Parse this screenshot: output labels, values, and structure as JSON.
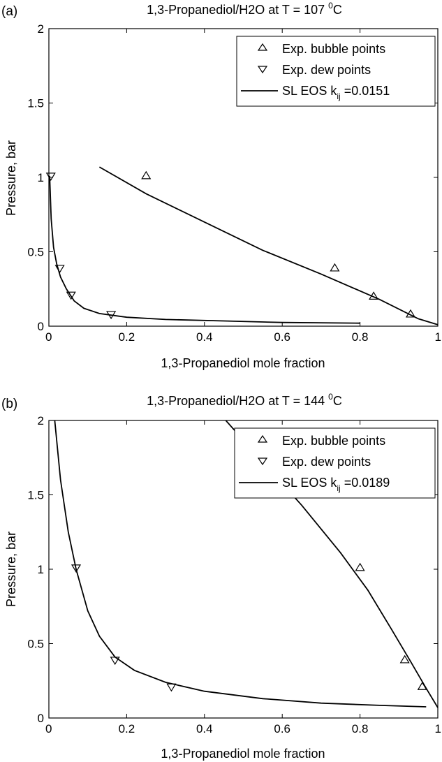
{
  "chart_data": [
    {
      "panel_label": "(a)",
      "type": "scatter",
      "title_main": "1,3-Propanediol/H2O at T = 107 ",
      "title_sup": "0",
      "title_unit": "C",
      "xlabel": "1,3-Propanediol mole fraction",
      "ylabel": "Pressure, bar",
      "xlim": [
        0,
        1
      ],
      "ylim": [
        0,
        2
      ],
      "xticks": [
        "0",
        "0.2",
        "0.4",
        "0.6",
        "0.8",
        "1"
      ],
      "yticks": [
        "0",
        "0.5",
        "1",
        "1.5",
        "2"
      ],
      "grid": false,
      "legend_position": "top-right",
      "legend": {
        "bubble": "Exp. bubble points",
        "dew": "Exp. dew points",
        "model_prefix": "SL EOS k",
        "model_sub": "ij",
        "model_suffix": " =0.0151"
      },
      "bubble_points": [
        {
          "x": 0.25,
          "y": 1.01
        },
        {
          "x": 0.735,
          "y": 0.39
        },
        {
          "x": 0.835,
          "y": 0.2
        },
        {
          "x": 0.93,
          "y": 0.08
        }
      ],
      "dew_points": [
        {
          "x": 0.005,
          "y": 1.01
        },
        {
          "x": 0.028,
          "y": 0.39
        },
        {
          "x": 0.057,
          "y": 0.21
        },
        {
          "x": 0.16,
          "y": 0.08
        }
      ],
      "bubble_curve": [
        {
          "x": 0.13,
          "y": 1.07
        },
        {
          "x": 0.25,
          "y": 0.89
        },
        {
          "x": 0.4,
          "y": 0.7
        },
        {
          "x": 0.55,
          "y": 0.51
        },
        {
          "x": 0.7,
          "y": 0.35
        },
        {
          "x": 0.85,
          "y": 0.18
        },
        {
          "x": 0.95,
          "y": 0.05
        },
        {
          "x": 1.0,
          "y": 0.01
        }
      ],
      "dew_curve": [
        {
          "x": 0.002,
          "y": 1.01
        },
        {
          "x": 0.006,
          "y": 0.72
        },
        {
          "x": 0.012,
          "y": 0.53
        },
        {
          "x": 0.02,
          "y": 0.42
        },
        {
          "x": 0.03,
          "y": 0.33
        },
        {
          "x": 0.045,
          "y": 0.25
        },
        {
          "x": 0.065,
          "y": 0.17
        },
        {
          "x": 0.09,
          "y": 0.12
        },
        {
          "x": 0.13,
          "y": 0.085
        },
        {
          "x": 0.2,
          "y": 0.06
        },
        {
          "x": 0.3,
          "y": 0.045
        },
        {
          "x": 0.45,
          "y": 0.035
        },
        {
          "x": 0.6,
          "y": 0.025
        },
        {
          "x": 0.8,
          "y": 0.02
        }
      ]
    },
    {
      "panel_label": "(b)",
      "type": "scatter",
      "title_main": "1,3-Propanediol/H2O at T = 144 ",
      "title_sup": "0",
      "title_unit": "C",
      "xlabel": "1,3-Propanediol mole fraction",
      "ylabel": "Pressure, bar",
      "xlim": [
        0,
        1
      ],
      "ylim": [
        0,
        2
      ],
      "xticks": [
        "0",
        "0.2",
        "0.4",
        "0.6",
        "0.8",
        "1"
      ],
      "yticks": [
        "0",
        "0.5",
        "1",
        "1.5",
        "2"
      ],
      "grid": false,
      "legend_position": "top-right",
      "legend": {
        "bubble": "Exp. bubble points",
        "dew": "Exp. dew points",
        "model_prefix": "SL EOS k",
        "model_sub": "ij",
        "model_suffix": " =0.0189"
      },
      "bubble_points": [
        {
          "x": 0.8,
          "y": 1.01
        },
        {
          "x": 0.915,
          "y": 0.39
        },
        {
          "x": 0.96,
          "y": 0.21
        }
      ],
      "dew_points": [
        {
          "x": 0.07,
          "y": 1.01
        },
        {
          "x": 0.17,
          "y": 0.39
        },
        {
          "x": 0.315,
          "y": 0.21
        }
      ],
      "bubble_curve": [
        {
          "x": 0.455,
          "y": 2.0
        },
        {
          "x": 0.55,
          "y": 1.72
        },
        {
          "x": 0.65,
          "y": 1.43
        },
        {
          "x": 0.75,
          "y": 1.11
        },
        {
          "x": 0.82,
          "y": 0.86
        },
        {
          "x": 0.88,
          "y": 0.6
        },
        {
          "x": 0.93,
          "y": 0.38
        },
        {
          "x": 0.97,
          "y": 0.2
        },
        {
          "x": 1.0,
          "y": 0.07
        }
      ],
      "dew_curve": [
        {
          "x": 0.015,
          "y": 2.0
        },
        {
          "x": 0.03,
          "y": 1.6
        },
        {
          "x": 0.05,
          "y": 1.25
        },
        {
          "x": 0.07,
          "y": 1.0
        },
        {
          "x": 0.1,
          "y": 0.72
        },
        {
          "x": 0.13,
          "y": 0.55
        },
        {
          "x": 0.17,
          "y": 0.41
        },
        {
          "x": 0.22,
          "y": 0.32
        },
        {
          "x": 0.3,
          "y": 0.24
        },
        {
          "x": 0.4,
          "y": 0.18
        },
        {
          "x": 0.55,
          "y": 0.13
        },
        {
          "x": 0.7,
          "y": 0.1
        },
        {
          "x": 0.85,
          "y": 0.085
        },
        {
          "x": 0.97,
          "y": 0.075
        }
      ]
    }
  ]
}
